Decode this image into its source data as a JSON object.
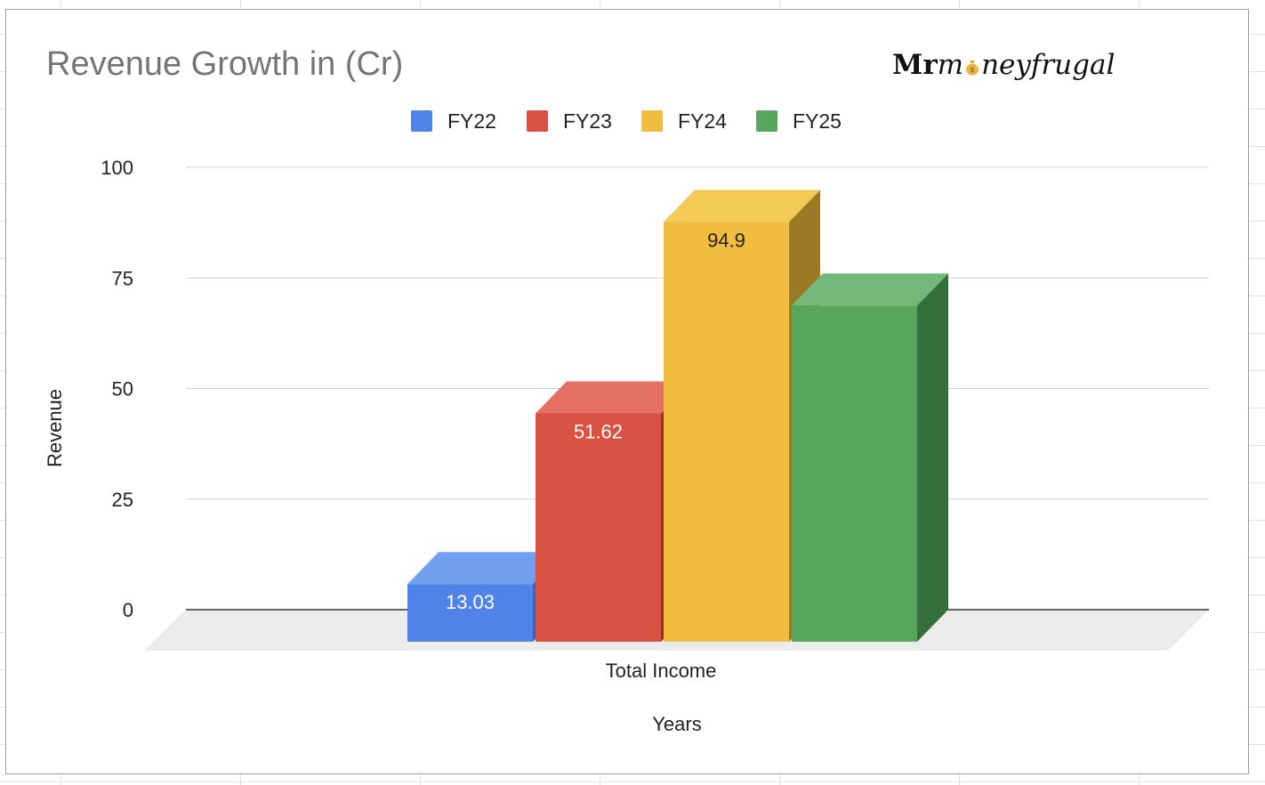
{
  "chart_data": {
    "type": "bar",
    "title": "Revenue Growth in (Cr)",
    "xlabel": "Years",
    "ylabel": "Revenue",
    "categories": [
      "Total Income"
    ],
    "series": [
      {
        "name": "FY22",
        "values": [
          13.03
        ],
        "label": "13.03",
        "color": "#5083e8",
        "top_color": "#72a0f0",
        "side_color": "#3865bd"
      },
      {
        "name": "FY23",
        "values": [
          51.62
        ],
        "label": "51.62",
        "color": "#d95142",
        "top_color": "#e37062",
        "side_color": "#9e3227"
      },
      {
        "name": "FY24",
        "values": [
          94.9
        ],
        "label": "94.9",
        "color": "#f1bd3f",
        "top_color": "#f4ca56",
        "side_color": "#9b7a25"
      },
      {
        "name": "FY25",
        "values": [
          76
        ],
        "label": "",
        "color": "#58a55e",
        "top_color": "#73b879",
        "side_color": "#356f3b"
      }
    ],
    "ylim": [
      0,
      100
    ],
    "yticks": [
      0,
      25,
      50,
      75,
      100
    ],
    "grid": true,
    "legend_position": "top",
    "style": "3d"
  },
  "brand": {
    "logo_prefix": "Mr",
    "logo_m": "m",
    "logo_rest": "neyfrugal",
    "logo_icon": "money-bag-icon"
  }
}
